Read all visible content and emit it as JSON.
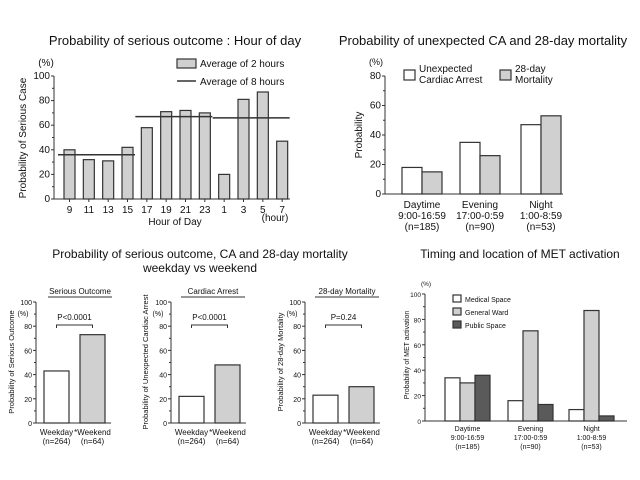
{
  "chart_data": [
    {
      "id": "hour",
      "type": "bar",
      "title": "Probability of serious outcome : Hour of day",
      "unit_label": "(%)",
      "ylabel": "Probability of Serious Case",
      "xlabel": "Hour of Day",
      "x_unit": "(hour)",
      "ylim": [
        0,
        100
      ],
      "yticks": [
        0,
        20,
        40,
        60,
        80,
        100
      ],
      "categories": [
        "9",
        "11",
        "13",
        "15",
        "17",
        "19",
        "21",
        "23",
        "1",
        "3",
        "5",
        "7"
      ],
      "series": [
        {
          "name": "Average of 2 hours",
          "values": [
            40,
            32,
            31,
            42,
            58,
            71,
            72,
            70,
            20,
            81,
            87,
            47
          ]
        }
      ],
      "averages": {
        "name": "Average of 8 hours",
        "segments": [
          {
            "from_index": 0,
            "to_index": 3,
            "value": 36
          },
          {
            "from_index": 4,
            "to_index": 7,
            "value": 67
          },
          {
            "from_index": 8,
            "to_index": 11,
            "value": 66
          }
        ]
      },
      "legend": [
        "Average of 2 hours",
        "Average of 8 hours"
      ],
      "legend_position": "top-right"
    },
    {
      "id": "ca",
      "type": "bar",
      "title": "Probability of unexpected CA and 28-day mortality",
      "unit_label": "(%)",
      "ylabel": "Probability",
      "ylim": [
        0,
        80
      ],
      "yticks": [
        0,
        20,
        40,
        60,
        80
      ],
      "categories": [
        [
          "Daytime",
          "9:00-16:59",
          "(n=185)"
        ],
        [
          "Evening",
          "17:00-0:59",
          "(n=90)"
        ],
        [
          "Night",
          "1:00-8:59",
          "(n=53)"
        ]
      ],
      "series": [
        {
          "name": "Unexpected Cardiac Arrest",
          "values": [
            18,
            35,
            47
          ]
        },
        {
          "name": "28-day Mortality",
          "values": [
            15,
            26,
            53
          ]
        }
      ],
      "legend": [
        [
          "Unexpected",
          "Cardiac Arrest"
        ],
        [
          "28-day",
          "Mortality"
        ]
      ],
      "legend_position": "top"
    },
    {
      "id": "so",
      "type": "bar",
      "title": "Serious Outcome",
      "unit_label": "(%)",
      "ylabel": "Probability of Serious Outcome",
      "ylim": [
        0,
        100
      ],
      "yticks": [
        0,
        20,
        40,
        60,
        80,
        100
      ],
      "categories": [
        [
          "Weekday",
          "(n=264)"
        ],
        [
          "*Weekend",
          "(n=64)"
        ]
      ],
      "values": [
        43,
        73
      ],
      "annotation": "P<0.0001"
    },
    {
      "id": "cardiac",
      "type": "bar",
      "title": "Cardiac Arrest",
      "unit_label": "(%)",
      "ylabel": "Probability of Unexpected Cardiac Arrest",
      "ylim": [
        0,
        100
      ],
      "yticks": [
        0,
        20,
        40,
        60,
        80,
        100
      ],
      "categories": [
        [
          "Weekday",
          "(n=264)"
        ],
        [
          "*Weekend",
          "(n=64)"
        ]
      ],
      "values": [
        22,
        48
      ],
      "annotation": "P<0.0001"
    },
    {
      "id": "mort",
      "type": "bar",
      "title": "28-day Mortality",
      "unit_label": "(%)",
      "ylabel": "Probability of 28-day Mortality",
      "ylim": [
        0,
        100
      ],
      "yticks": [
        0,
        20,
        40,
        60,
        80,
        100
      ],
      "categories": [
        [
          "Weekday",
          "(n=264)"
        ],
        [
          "*Weekend",
          "(n=64)"
        ]
      ],
      "values": [
        23,
        30
      ],
      "annotation": "P=0.24"
    },
    {
      "id": "met",
      "type": "bar",
      "title": "Timing and location of MET activation",
      "unit_label": "(%)",
      "ylabel": "Probability of MET activation",
      "ylim": [
        0,
        100
      ],
      "yticks": [
        0,
        20,
        40,
        60,
        80,
        100
      ],
      "categories": [
        [
          "Daytime",
          "9:00-16:59",
          "(n=185)"
        ],
        [
          "Evening",
          "17:00-0:59",
          "(n=90)"
        ],
        [
          "Night",
          "1:00-8:59",
          "(n=53)"
        ]
      ],
      "series": [
        {
          "name": "Medical Space",
          "values": [
            34,
            16,
            9
          ]
        },
        {
          "name": "General Ward",
          "values": [
            30,
            71,
            87
          ]
        },
        {
          "name": "Public Space",
          "values": [
            36,
            13,
            4
          ]
        }
      ],
      "legend_position": "top-left"
    }
  ],
  "group_title": [
    "Probability of serious outcome, CA and 28-day mortality",
    "weekday vs weekend"
  ],
  "colors": {
    "white": "#ffffff",
    "light": "#d0d0d0",
    "dark": "#5a5a5a",
    "axis": "#333333"
  }
}
